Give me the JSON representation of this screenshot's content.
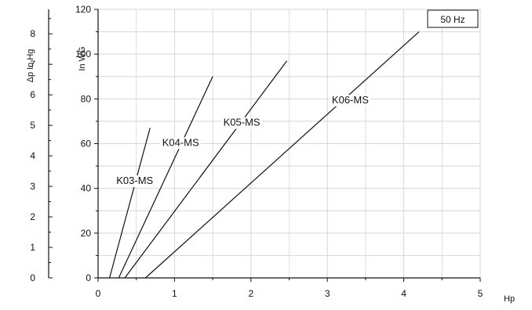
{
  "chart_data": {
    "type": "line",
    "title": "",
    "legend_box": "50 Hz",
    "xlabel": "Hp",
    "ylabel_left": "Δp  In Hg",
    "ylabel_right": "In WG",
    "xlim": [
      0,
      5
    ],
    "ylim": [
      0,
      120
    ],
    "ylim_left": [
      0,
      8.8
    ],
    "grid": true,
    "x_ticks": [
      "0",
      "1",
      "2",
      "3",
      "4",
      "5"
    ],
    "y_ticks": [
      "0",
      "20",
      "40",
      "60",
      "80",
      "100",
      "120"
    ],
    "y_ticks_left": [
      "0",
      "1",
      "2",
      "3",
      "4",
      "5",
      "6",
      "7",
      "8"
    ],
    "series": [
      {
        "name": "K03-MS",
        "x": [
          0.15,
          0.68
        ],
        "y": [
          0,
          67
        ]
      },
      {
        "name": "K04-MS",
        "x": [
          0.27,
          1.5
        ],
        "y": [
          0,
          90
        ]
      },
      {
        "name": "K05-MS",
        "x": [
          0.35,
          2.47
        ],
        "y": [
          0,
          97
        ]
      },
      {
        "name": "K06-MS",
        "x": [
          0.62,
          4.2
        ],
        "y": [
          0,
          110
        ]
      }
    ],
    "colors": {
      "line": "#111111",
      "grid": "#d6d6d6",
      "axis": "#111111"
    }
  }
}
